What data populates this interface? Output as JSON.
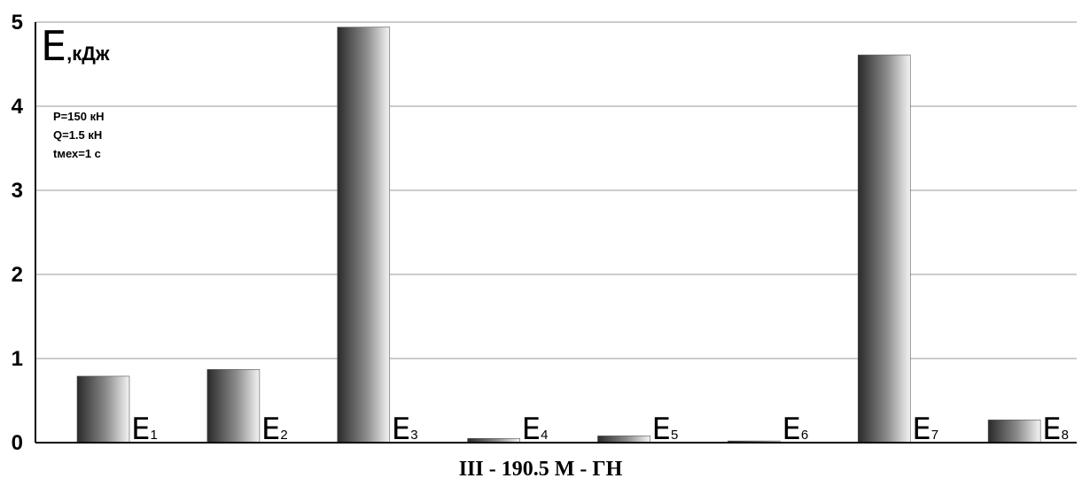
{
  "chart_data": {
    "type": "bar",
    "title": "",
    "xlabel": "III - 190.5 M - ГН",
    "ylabel_main": "E",
    "ylabel_unit": ",кДж",
    "ylim": [
      0,
      5
    ],
    "yticks": [
      "0",
      "1",
      "2",
      "3",
      "4",
      "5"
    ],
    "grid": true,
    "categories": [
      {
        "main": "E",
        "sub": "1"
      },
      {
        "main": "E",
        "sub": "2"
      },
      {
        "main": "E",
        "sub": "3"
      },
      {
        "main": "E",
        "sub": "4"
      },
      {
        "main": "E",
        "sub": "5"
      },
      {
        "main": "E",
        "sub": "6"
      },
      {
        "main": "E",
        "sub": "7"
      },
      {
        "main": "E",
        "sub": "8"
      }
    ],
    "values": [
      0.79,
      0.87,
      4.94,
      0.05,
      0.08,
      0.02,
      4.61,
      0.27
    ],
    "annotations": [
      "P=150 кН",
      "Q=1.5 кН",
      "tмех=1 с"
    ]
  }
}
